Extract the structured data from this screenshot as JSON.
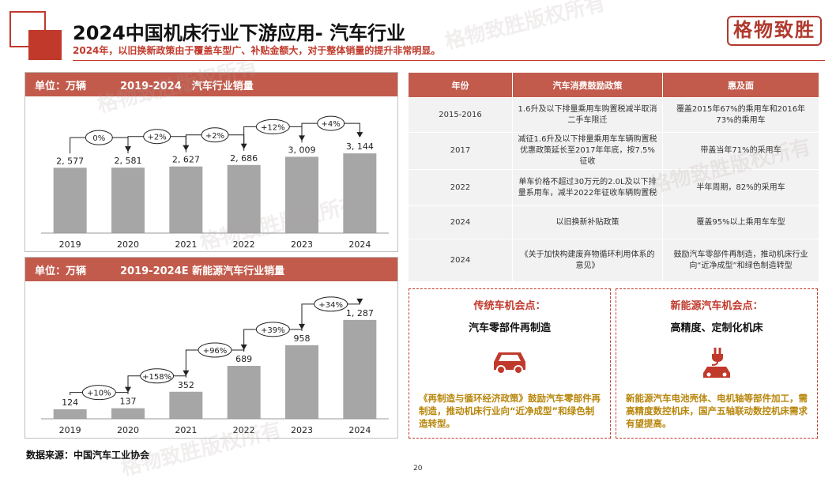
{
  "header": {
    "title": "2024中国机床行业下游应用- 汽车行业",
    "subtitle": "2024年，以旧换新政策由于覆盖车型广、补贴金额大，对于整体销量的提升非常明显。",
    "logo_text": "格物致胜"
  },
  "chart_data": [
    {
      "type": "bar",
      "unit_label": "单位：万辆",
      "title": "2019-2024　汽车行业销量",
      "categories": [
        "2019",
        "2020",
        "2021",
        "2022",
        "2023",
        "2024"
      ],
      "values": [
        2577,
        2581,
        2627,
        2686,
        3009,
        3144
      ],
      "value_labels": [
        "2, 577",
        "2, 581",
        "2, 627",
        "2, 686",
        "3, 009",
        "3, 144"
      ],
      "growth_labels": [
        "0%",
        "+2%",
        "+2%",
        "+12%",
        "+4%"
      ],
      "ylim": [
        0,
        4300
      ],
      "bar_color": "#a6a6a6"
    },
    {
      "type": "bar",
      "unit_label": "单位：万辆",
      "title": "2019-2024E  新能源汽车行业销量",
      "categories": [
        "2019",
        "2020",
        "2021",
        "2022",
        "2023",
        "2024"
      ],
      "values": [
        124,
        137,
        352,
        689,
        958,
        1287
      ],
      "value_labels": [
        "124",
        "137",
        "352",
        "689",
        "958",
        "1, 287"
      ],
      "growth_labels": [
        "+10%",
        "+158%",
        "+96%",
        "+39%",
        "+34%"
      ],
      "ylim": [
        0,
        1800
      ],
      "bar_color": "#a6a6a6"
    }
  ],
  "policy_table": {
    "headers": [
      "年份",
      "汽车消费鼓励政策",
      "惠及面"
    ],
    "rows": [
      [
        "2015-2016",
        "1.6升及以下排量乘用车购置税减半取消二手车限迁",
        "覆盖2015年67%的乘用车和2016年73%的乘用车"
      ],
      [
        "2017",
        "减征1.6升及以下排量乘用车车辆购置税优惠政策延长至2017年年底，按7.5%征收",
        "带盖当年71%的采用车"
      ],
      [
        "2022",
        "单车价格不超过30万元的2.0L及以下排量系用车，减半2022年征收车辆购置税",
        "半年周期，82%的采用车"
      ],
      [
        "2024",
        "以旧换新补贴政策",
        "覆盖95%以上乘用车车型"
      ],
      [
        "2024",
        "《关于加快构建废弃物循环利用体系的意见》",
        "鼓励汽车零部件再制造，推动机床行业向“近净成型”和绿色制造转型"
      ]
    ]
  },
  "opportunity_boxes": [
    {
      "title": "传统车机会点：",
      "subtitle": "汽车零部件再制造",
      "icon": "car-icon",
      "text": "《再制造与循环经济政策》鼓励汽车零部件再制造，推动机床行业向“近净成型”和绿色制造转型。"
    },
    {
      "title": "新能源汽车机会点：",
      "subtitle": "高精度、定制化机床",
      "icon": "ev-charging-car-icon",
      "text": "新能源汽车电池壳体、电机轴等部件加工，需高精度数控机床，国产五轴联动数控机床需求有望提高。"
    }
  ],
  "footer": {
    "source": "数据来源：中国汽车工业协会",
    "page_number": "20"
  },
  "colors": {
    "accent": "#c0392b",
    "header_fill": "#c25b4c",
    "highlight_text": "#b8860b",
    "bar": "#a6a6a6"
  }
}
